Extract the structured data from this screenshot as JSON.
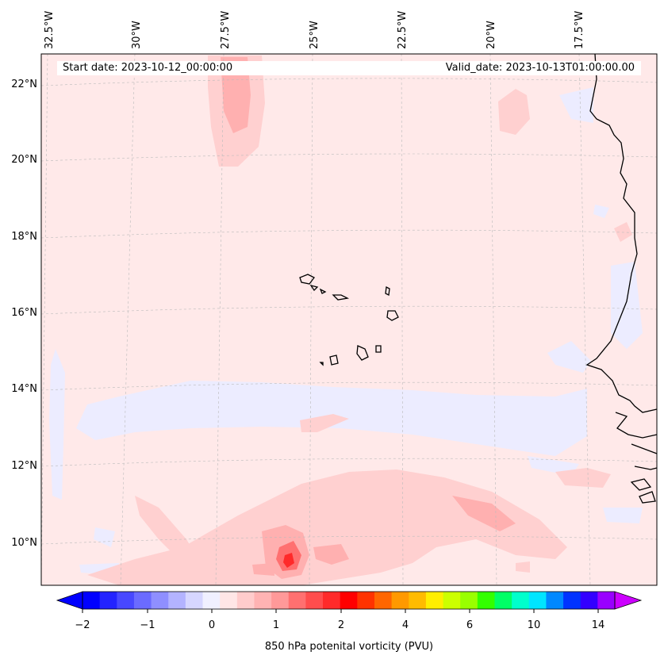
{
  "map": {
    "start_date": "Start date: 2023-10-12_00:00:00",
    "valid_date": "Valid_date: 2023-10-13T01:00:00.00",
    "lon_labels": [
      "32.5°W",
      "30°W",
      "27.5°W",
      "25°W",
      "22.5°W",
      "20°W",
      "17.5°W"
    ],
    "lat_labels": [
      "22°N",
      "20°N",
      "18°N",
      "16°N",
      "14°N",
      "12°N",
      "10°N"
    ]
  },
  "colorbar": {
    "label": "850 hPa potenital vorticity (PVU)",
    "tick_labels": [
      "−2",
      "−1",
      "0",
      "1",
      "2",
      "4",
      "6",
      "10",
      "14"
    ],
    "colors": [
      "#0000ff",
      "#2323ff",
      "#4848ff",
      "#6b6bff",
      "#8f8fff",
      "#b3b3ff",
      "#d6d6ff",
      "#f0f0ff",
      "#ffe6e6",
      "#ffcccc",
      "#ffb3b3",
      "#ff9999",
      "#ff7070",
      "#ff4d4d",
      "#ff2a2a",
      "#ff0000",
      "#ff3300",
      "#ff6600",
      "#ff9900",
      "#ffbb00",
      "#ffee00",
      "#ccff00",
      "#99ff00",
      "#33ff00",
      "#00ff66",
      "#00ffcc",
      "#00e5ff",
      "#0088ff",
      "#0033ff",
      "#3300ff",
      "#9900ff"
    ],
    "under_color": "#0000ff",
    "over_color": "#cc00ff"
  },
  "colors": {
    "background_field": "#ffe9e9",
    "weak_negative": "#ececff",
    "weak_positive": "#ffd0d0",
    "moderate_positive": "#ffb0b0",
    "strong_positive": "#ff7070",
    "peak_positive": "#ff2a2a",
    "coastline": "#000000"
  }
}
